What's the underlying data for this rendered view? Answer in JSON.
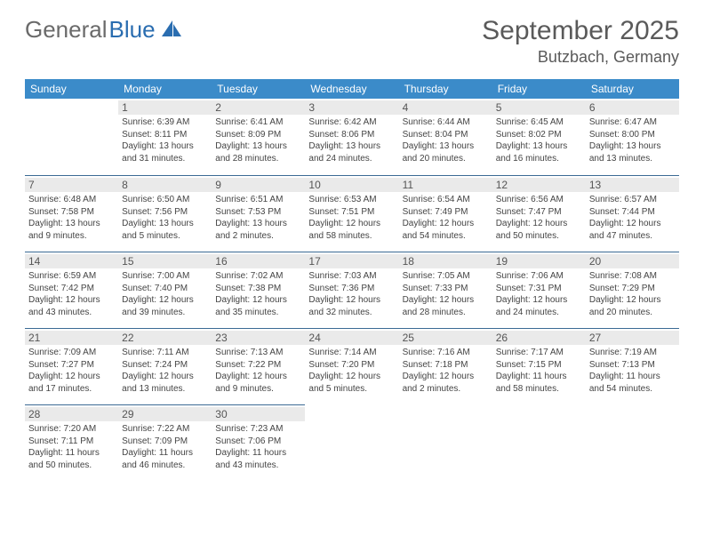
{
  "logo": {
    "word1": "General",
    "word2": "Blue"
  },
  "header": {
    "month": "September 2025",
    "location": "Butzbach, Germany"
  },
  "colors": {
    "header_bg": "#3b8bc9",
    "header_text": "#ffffff",
    "cell_border": "#3b6a94",
    "daynum_bg": "#eaeaea",
    "daynum_text": "#555555",
    "body_text": "#444444",
    "logo_gray": "#6a6a6a",
    "logo_blue": "#2a6db0"
  },
  "layout": {
    "columns": 7,
    "start_column": 1,
    "font_size_info": 10,
    "font_size_daynum": 12,
    "font_size_head": 12
  },
  "day_headers": [
    "Sunday",
    "Monday",
    "Tuesday",
    "Wednesday",
    "Thursday",
    "Friday",
    "Saturday"
  ],
  "days": [
    {
      "n": "1",
      "sr": "Sunrise: 6:39 AM",
      "ss": "Sunset: 8:11 PM",
      "d1": "Daylight: 13 hours",
      "d2": "and 31 minutes."
    },
    {
      "n": "2",
      "sr": "Sunrise: 6:41 AM",
      "ss": "Sunset: 8:09 PM",
      "d1": "Daylight: 13 hours",
      "d2": "and 28 minutes."
    },
    {
      "n": "3",
      "sr": "Sunrise: 6:42 AM",
      "ss": "Sunset: 8:06 PM",
      "d1": "Daylight: 13 hours",
      "d2": "and 24 minutes."
    },
    {
      "n": "4",
      "sr": "Sunrise: 6:44 AM",
      "ss": "Sunset: 8:04 PM",
      "d1": "Daylight: 13 hours",
      "d2": "and 20 minutes."
    },
    {
      "n": "5",
      "sr": "Sunrise: 6:45 AM",
      "ss": "Sunset: 8:02 PM",
      "d1": "Daylight: 13 hours",
      "d2": "and 16 minutes."
    },
    {
      "n": "6",
      "sr": "Sunrise: 6:47 AM",
      "ss": "Sunset: 8:00 PM",
      "d1": "Daylight: 13 hours",
      "d2": "and 13 minutes."
    },
    {
      "n": "7",
      "sr": "Sunrise: 6:48 AM",
      "ss": "Sunset: 7:58 PM",
      "d1": "Daylight: 13 hours",
      "d2": "and 9 minutes."
    },
    {
      "n": "8",
      "sr": "Sunrise: 6:50 AM",
      "ss": "Sunset: 7:56 PM",
      "d1": "Daylight: 13 hours",
      "d2": "and 5 minutes."
    },
    {
      "n": "9",
      "sr": "Sunrise: 6:51 AM",
      "ss": "Sunset: 7:53 PM",
      "d1": "Daylight: 13 hours",
      "d2": "and 2 minutes."
    },
    {
      "n": "10",
      "sr": "Sunrise: 6:53 AM",
      "ss": "Sunset: 7:51 PM",
      "d1": "Daylight: 12 hours",
      "d2": "and 58 minutes."
    },
    {
      "n": "11",
      "sr": "Sunrise: 6:54 AM",
      "ss": "Sunset: 7:49 PM",
      "d1": "Daylight: 12 hours",
      "d2": "and 54 minutes."
    },
    {
      "n": "12",
      "sr": "Sunrise: 6:56 AM",
      "ss": "Sunset: 7:47 PM",
      "d1": "Daylight: 12 hours",
      "d2": "and 50 minutes."
    },
    {
      "n": "13",
      "sr": "Sunrise: 6:57 AM",
      "ss": "Sunset: 7:44 PM",
      "d1": "Daylight: 12 hours",
      "d2": "and 47 minutes."
    },
    {
      "n": "14",
      "sr": "Sunrise: 6:59 AM",
      "ss": "Sunset: 7:42 PM",
      "d1": "Daylight: 12 hours",
      "d2": "and 43 minutes."
    },
    {
      "n": "15",
      "sr": "Sunrise: 7:00 AM",
      "ss": "Sunset: 7:40 PM",
      "d1": "Daylight: 12 hours",
      "d2": "and 39 minutes."
    },
    {
      "n": "16",
      "sr": "Sunrise: 7:02 AM",
      "ss": "Sunset: 7:38 PM",
      "d1": "Daylight: 12 hours",
      "d2": "and 35 minutes."
    },
    {
      "n": "17",
      "sr": "Sunrise: 7:03 AM",
      "ss": "Sunset: 7:36 PM",
      "d1": "Daylight: 12 hours",
      "d2": "and 32 minutes."
    },
    {
      "n": "18",
      "sr": "Sunrise: 7:05 AM",
      "ss": "Sunset: 7:33 PM",
      "d1": "Daylight: 12 hours",
      "d2": "and 28 minutes."
    },
    {
      "n": "19",
      "sr": "Sunrise: 7:06 AM",
      "ss": "Sunset: 7:31 PM",
      "d1": "Daylight: 12 hours",
      "d2": "and 24 minutes."
    },
    {
      "n": "20",
      "sr": "Sunrise: 7:08 AM",
      "ss": "Sunset: 7:29 PM",
      "d1": "Daylight: 12 hours",
      "d2": "and 20 minutes."
    },
    {
      "n": "21",
      "sr": "Sunrise: 7:09 AM",
      "ss": "Sunset: 7:27 PM",
      "d1": "Daylight: 12 hours",
      "d2": "and 17 minutes."
    },
    {
      "n": "22",
      "sr": "Sunrise: 7:11 AM",
      "ss": "Sunset: 7:24 PM",
      "d1": "Daylight: 12 hours",
      "d2": "and 13 minutes."
    },
    {
      "n": "23",
      "sr": "Sunrise: 7:13 AM",
      "ss": "Sunset: 7:22 PM",
      "d1": "Daylight: 12 hours",
      "d2": "and 9 minutes."
    },
    {
      "n": "24",
      "sr": "Sunrise: 7:14 AM",
      "ss": "Sunset: 7:20 PM",
      "d1": "Daylight: 12 hours",
      "d2": "and 5 minutes."
    },
    {
      "n": "25",
      "sr": "Sunrise: 7:16 AM",
      "ss": "Sunset: 7:18 PM",
      "d1": "Daylight: 12 hours",
      "d2": "and 2 minutes."
    },
    {
      "n": "26",
      "sr": "Sunrise: 7:17 AM",
      "ss": "Sunset: 7:15 PM",
      "d1": "Daylight: 11 hours",
      "d2": "and 58 minutes."
    },
    {
      "n": "27",
      "sr": "Sunrise: 7:19 AM",
      "ss": "Sunset: 7:13 PM",
      "d1": "Daylight: 11 hours",
      "d2": "and 54 minutes."
    },
    {
      "n": "28",
      "sr": "Sunrise: 7:20 AM",
      "ss": "Sunset: 7:11 PM",
      "d1": "Daylight: 11 hours",
      "d2": "and 50 minutes."
    },
    {
      "n": "29",
      "sr": "Sunrise: 7:22 AM",
      "ss": "Sunset: 7:09 PM",
      "d1": "Daylight: 11 hours",
      "d2": "and 46 minutes."
    },
    {
      "n": "30",
      "sr": "Sunrise: 7:23 AM",
      "ss": "Sunset: 7:06 PM",
      "d1": "Daylight: 11 hours",
      "d2": "and 43 minutes."
    }
  ]
}
